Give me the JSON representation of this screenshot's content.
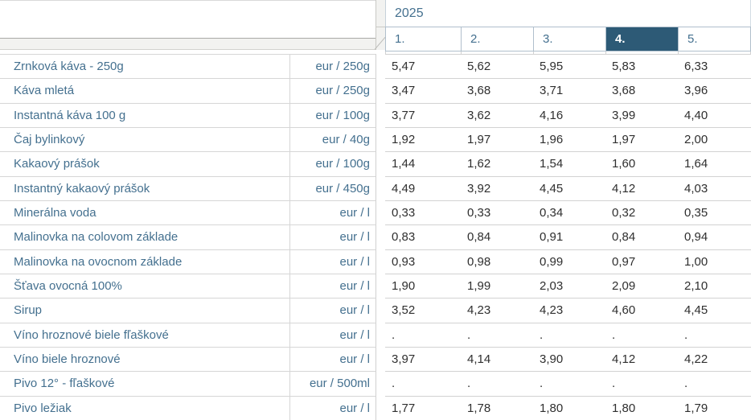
{
  "header": {
    "year": "2025",
    "months": [
      "1.",
      "2.",
      "3.",
      "4.",
      "5."
    ],
    "selected_month_index": 3
  },
  "table": {
    "rows": [
      {
        "name": "Zrnková káva - 250g",
        "unit": "eur / 250g",
        "values": [
          "5,47",
          "5,62",
          "5,95",
          "5,83",
          "6,33"
        ]
      },
      {
        "name": "Káva mletá",
        "unit": "eur / 250g",
        "values": [
          "3,47",
          "3,68",
          "3,71",
          "3,68",
          "3,96"
        ]
      },
      {
        "name": "Instantná káva 100 g",
        "unit": "eur / 100g",
        "values": [
          "3,77",
          "3,62",
          "4,16",
          "3,99",
          "4,40"
        ]
      },
      {
        "name": "Čaj bylinkový",
        "unit": "eur / 40g",
        "values": [
          "1,92",
          "1,97",
          "1,96",
          "1,97",
          "2,00"
        ]
      },
      {
        "name": "Kakaový prášok",
        "unit": "eur / 100g",
        "values": [
          "1,44",
          "1,62",
          "1,54",
          "1,60",
          "1,64"
        ]
      },
      {
        "name": "Instantný kakaový prášok",
        "unit": "eur / 450g",
        "values": [
          "4,49",
          "3,92",
          "4,45",
          "4,12",
          "4,03"
        ]
      },
      {
        "name": "Minerálna voda",
        "unit": "eur / l",
        "values": [
          "0,33",
          "0,33",
          "0,34",
          "0,32",
          "0,35"
        ]
      },
      {
        "name": "Malinovka na colovom základe",
        "unit": "eur / l",
        "values": [
          "0,83",
          "0,84",
          "0,91",
          "0,84",
          "0,94"
        ]
      },
      {
        "name": "Malinovka na ovocnom základe",
        "unit": "eur / l",
        "values": [
          "0,93",
          "0,98",
          "0,99",
          "0,97",
          "1,00"
        ]
      },
      {
        "name": "Šťava ovocná 100%",
        "unit": "eur / l",
        "values": [
          "1,90",
          "1,99",
          "2,03",
          "2,09",
          "2,10"
        ]
      },
      {
        "name": "Sirup",
        "unit": "eur / l",
        "values": [
          "3,52",
          "4,23",
          "4,23",
          "4,60",
          "4,45"
        ]
      },
      {
        "name": "Víno hroznové biele fľaškové",
        "unit": "eur / l",
        "values": [
          ".",
          ".",
          ".",
          ".",
          "."
        ]
      },
      {
        "name": "Víno biele hroznové",
        "unit": "eur / l",
        "values": [
          "3,97",
          "4,14",
          "3,90",
          "4,12",
          "4,22"
        ]
      },
      {
        "name": "Pivo 12° - fľaškové",
        "unit": "eur / 500ml",
        "values": [
          ".",
          ".",
          ".",
          ".",
          "."
        ]
      },
      {
        "name": "Pivo ležiak",
        "unit": "eur / l",
        "values": [
          "1,77",
          "1,78",
          "1,80",
          "1,80",
          "1,79"
        ]
      }
    ]
  },
  "colors": {
    "label_text": "#44708f",
    "value_text": "#2f2f2f",
    "selected_month_bg": "#2d5a76",
    "selected_month_text": "#ffffff",
    "grid_line": "#d2d2d2",
    "header_border": "#b0bfcc",
    "bevel_fill": "#f2f2f0"
  }
}
